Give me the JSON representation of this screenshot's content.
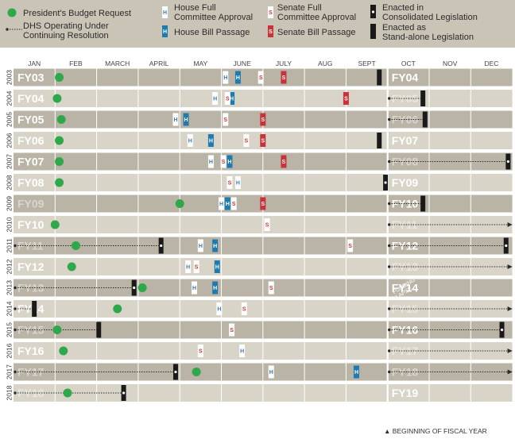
{
  "legend": {
    "budget_request": "President's Budget Request",
    "continuing_resolution_1": "DHS Operating Under",
    "continuing_resolution_2": "Continuing Resolution",
    "house_committee_1": "House Full",
    "house_committee_2": "Committee Approval",
    "house_passage": "House Bill Passage",
    "senate_committee_1": "Senate Full",
    "senate_committee_2": "Committee Approval",
    "senate_passage": "Senate Bill Passage",
    "enacted_consolidated_1": "Enacted in",
    "enacted_consolidated_2": "Consolidated Legislation",
    "enacted_standalone_1": "Enacted as",
    "enacted_standalone_2": "Stand-alone Legislation",
    "house_letter": "H",
    "senate_letter": "S"
  },
  "footnote": "▲ BEGINNING OF FISCAL YEAR",
  "colors": {
    "legend_bg": "#c9c4b6",
    "row_dark": "#b9b4a6",
    "row_light": "#d8d4c8",
    "budget_request": "#2ea84a",
    "house_committee": "#3a78b5",
    "house_passage": "#1e7bb0",
    "senate_committee": "#c8323a",
    "senate_passage": "#c8323a",
    "enacted": "#1a1a1a"
  },
  "chart_data": {
    "type": "timeline",
    "months": [
      "JAN",
      "FEB",
      "MARCH",
      "APRIL",
      "MAY",
      "JUNE",
      "JULY",
      "AUG",
      "SEPT",
      "OCT",
      "NOV",
      "DEC"
    ],
    "x_units": "month (1 = January 1, 13 = end of December)",
    "rows": [
      {
        "year": "2003",
        "fy_label": "FY03",
        "next_fy_label": "FY04",
        "shade": "dark",
        "faded": false,
        "next_faded": false,
        "budget": 2.1,
        "cr": null,
        "house_committee": 6.1,
        "house_passage": 6.4,
        "senate_committee": 6.95,
        "senate_passage": 7.5,
        "enacted": [
          {
            "x": 9.8,
            "type": "standalone"
          }
        ],
        "next_cr": null,
        "next_enacted": null
      },
      {
        "year": "2004",
        "fy_label": "FY04",
        "next_fy_label": "FY05",
        "shade": "light",
        "faded": false,
        "next_faded": true,
        "budget": 2.05,
        "cr": null,
        "house_committee": 5.85,
        "house_passage": 6.25,
        "senate_committee": 6.15,
        "senate_passage": 9.0,
        "enacted": [],
        "next_cr": [
          10.0,
          10.85
        ],
        "next_enacted": {
          "x": 10.85,
          "type": "standalone"
        }
      },
      {
        "year": "2005",
        "fy_label": "FY05",
        "next_fy_label": "FY06",
        "shade": "dark",
        "faded": false,
        "next_faded": true,
        "budget": 2.15,
        "cr": null,
        "house_committee": 4.9,
        "house_passage": 5.15,
        "senate_committee": 6.1,
        "senate_passage": 7.0,
        "enacted": [],
        "next_cr": [
          10.0,
          10.9
        ],
        "next_enacted": {
          "x": 10.9,
          "type": "standalone"
        }
      },
      {
        "year": "2006",
        "fy_label": "FY06",
        "next_fy_label": "FY07",
        "shade": "light",
        "faded": false,
        "next_faded": false,
        "budget": 2.1,
        "cr": null,
        "house_committee": 5.25,
        "house_passage": 5.75,
        "senate_committee": 6.6,
        "senate_passage": 7.0,
        "enacted": [
          {
            "x": 9.8,
            "type": "standalone"
          }
        ],
        "next_cr": null,
        "next_enacted": null
      },
      {
        "year": "2007",
        "fy_label": "FY07",
        "next_fy_label": "FY08",
        "shade": "dark",
        "faded": false,
        "next_faded": true,
        "budget": 2.1,
        "cr": null,
        "house_committee": 5.75,
        "house_passage": 6.2,
        "senate_committee": 6.05,
        "senate_passage": 7.5,
        "enacted": [],
        "next_cr": [
          10.0,
          12.9
        ],
        "next_enacted": {
          "x": 12.9,
          "type": "consolidated"
        }
      },
      {
        "year": "2008",
        "fy_label": "FY08",
        "next_fy_label": "FY09",
        "shade": "light",
        "faded": false,
        "next_faded": false,
        "budget": 2.1,
        "cr": null,
        "house_committee": 6.4,
        "house_passage": null,
        "senate_committee": 6.2,
        "senate_passage": null,
        "enacted": [
          {
            "x": 9.95,
            "type": "consolidated"
          }
        ],
        "next_cr": null,
        "next_enacted": null
      },
      {
        "year": "2009",
        "fy_label": "FY09",
        "next_fy_label": "FY10",
        "shade": "dark",
        "faded": true,
        "next_faded": false,
        "budget": 5.0,
        "cr": null,
        "house_committee": 6.0,
        "house_passage": 6.15,
        "senate_committee": 6.3,
        "senate_passage": 7.0,
        "enacted": [],
        "next_cr": [
          10.0,
          10.85
        ],
        "next_enacted": {
          "x": 10.85,
          "type": "standalone"
        }
      },
      {
        "year": "2010",
        "fy_label": "FY10",
        "next_fy_label": "FY11",
        "shade": "light",
        "faded": false,
        "next_faded": true,
        "budget": 2.0,
        "cr": null,
        "house_committee": null,
        "house_passage": null,
        "senate_committee": 7.1,
        "senate_passage": null,
        "enacted": [],
        "next_cr": [
          10.0,
          13.0
        ],
        "next_enacted": null
      },
      {
        "year": "2011",
        "fy_label": "FY11",
        "next_fy_label": "FY12",
        "shade": "dark",
        "faded": true,
        "next_faded": false,
        "budget": 2.5,
        "cr": [
          1.0,
          4.55
        ],
        "house_committee": 5.5,
        "house_passage": 5.85,
        "senate_committee": 9.1,
        "senate_passage": null,
        "enacted": [
          {
            "x": 4.55,
            "type": "consolidated"
          }
        ],
        "next_cr": [
          10.0,
          12.85
        ],
        "next_enacted": {
          "x": 12.85,
          "type": "consolidated"
        }
      },
      {
        "year": "2012",
        "fy_label": "FY12",
        "next_fy_label": "FY13",
        "shade": "light",
        "faded": false,
        "next_faded": true,
        "budget": 2.4,
        "cr": null,
        "house_committee": 5.2,
        "house_passage": 5.9,
        "senate_committee": 5.4,
        "senate_passage": null,
        "enacted": [],
        "next_cr": [
          10.0,
          13.0
        ],
        "next_enacted": null
      },
      {
        "year": "2013",
        "fy_label": "FY13",
        "next_fy_label": "FY14",
        "shade": "dark",
        "faded": true,
        "next_faded": false,
        "budget": 4.1,
        "cr": [
          1.0,
          3.9
        ],
        "house_committee": 5.35,
        "house_passage": 5.85,
        "senate_committee": 7.2,
        "senate_passage": null,
        "enacted": [
          {
            "x": 3.9,
            "type": "consolidated"
          }
        ],
        "next_cr": null,
        "next_enacted": null,
        "next_note_1": "FUNDING",
        "next_note_2": "LAPSE"
      },
      {
        "year": "2014",
        "fy_label": "FY14",
        "next_fy_label": "FY15",
        "shade": "light",
        "faded": false,
        "next_faded": true,
        "budget": 3.5,
        "cr": [
          1.0,
          1.5
        ],
        "house_committee": 5.95,
        "house_passage": null,
        "senate_committee": 6.55,
        "senate_passage": null,
        "enacted": [
          {
            "x": 1.5,
            "type": "standalone"
          }
        ],
        "next_cr": [
          10.0,
          13.0
        ],
        "next_enacted": null
      },
      {
        "year": "2015",
        "fy_label": "FY15",
        "next_fy_label": "FY16",
        "shade": "dark",
        "faded": true,
        "next_faded": false,
        "budget": 2.05,
        "cr": [
          1.0,
          3.05
        ],
        "house_committee": null,
        "house_passage": null,
        "senate_committee": 6.25,
        "senate_passage": null,
        "enacted": [
          {
            "x": 3.05,
            "type": "standalone"
          }
        ],
        "next_cr": [
          10.0,
          12.75
        ],
        "next_enacted": {
          "x": 12.75,
          "type": "consolidated"
        }
      },
      {
        "year": "2016",
        "fy_label": "FY16",
        "next_fy_label": "FY17",
        "shade": "light",
        "faded": false,
        "next_faded": true,
        "budget": 2.2,
        "cr": null,
        "house_committee": 6.5,
        "house_passage": null,
        "senate_committee": 5.5,
        "senate_passage": null,
        "enacted": [],
        "next_cr": [
          10.0,
          13.0
        ],
        "next_enacted": null
      },
      {
        "year": "2017",
        "fy_label": "FY17",
        "next_fy_label": "FY18",
        "shade": "dark",
        "faded": true,
        "next_faded": true,
        "budget": 5.4,
        "cr": [
          1.0,
          4.9
        ],
        "house_committee": 7.2,
        "house_passage": 9.25,
        "senate_committee": null,
        "senate_passage": null,
        "enacted": [
          {
            "x": 4.9,
            "type": "consolidated"
          }
        ],
        "next_cr": [
          10.0,
          13.0
        ],
        "next_enacted": null
      },
      {
        "year": "2018",
        "fy_label": "FY18",
        "next_fy_label": "FY19",
        "shade": "light",
        "faded": true,
        "next_faded": false,
        "budget": 2.3,
        "cr": [
          1.0,
          3.65
        ],
        "house_committee": null,
        "house_passage": null,
        "senate_committee": null,
        "senate_passage": null,
        "enacted": [
          {
            "x": 3.65,
            "type": "consolidated"
          }
        ],
        "next_cr": null,
        "next_enacted": null
      }
    ]
  }
}
